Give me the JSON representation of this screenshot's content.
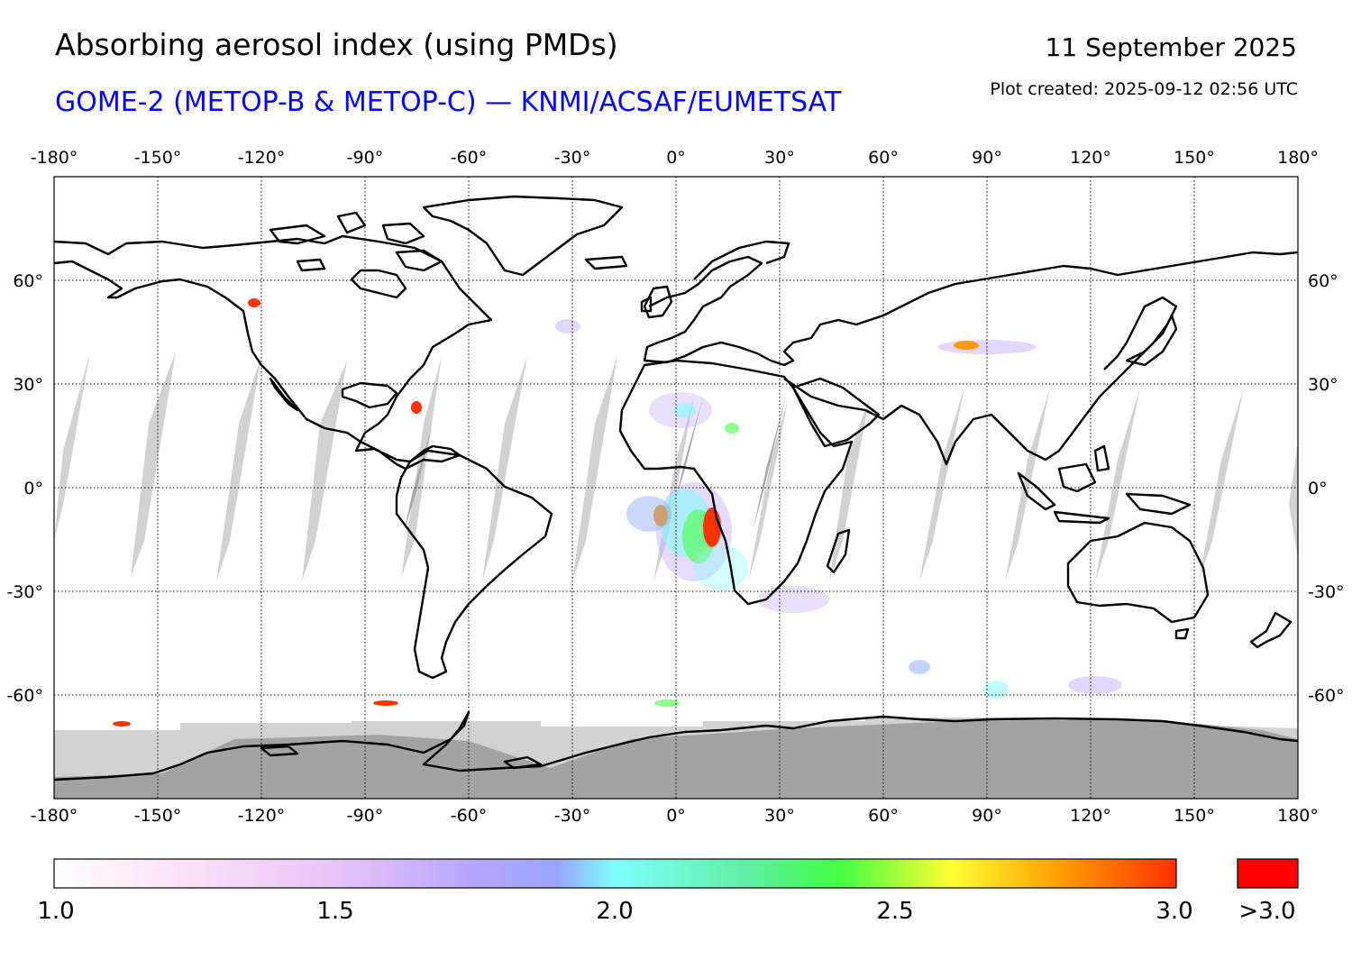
{
  "header": {
    "title": "Absorbing aerosol index (using PMDs)",
    "subtitle": "GOME-2 (METOP-B & METOP-C) — KNMI/ACSAF/EUMETSAT",
    "date": "11 September 2025",
    "created": "Plot created: 2025-09-12 02:56 UTC"
  },
  "colors": {
    "subtitle": "#0000ff",
    "coast": "#000000",
    "gap": "#d0d0d0",
    "night": "#a3a3a3",
    "high": "#ff0000"
  },
  "map": {
    "projection": "equirectangular",
    "lon_range": [
      -180,
      180
    ],
    "lat_range": [
      -90,
      90
    ],
    "grid": true,
    "lon_ticks": [
      "-180°",
      "-150°",
      "-120°",
      "-90°",
      "-60°",
      "-30°",
      "0°",
      "30°",
      "60°",
      "90°",
      "120°",
      "150°",
      "180°"
    ],
    "lat_ticks": [
      "60°",
      "30°",
      "0°",
      "-30°",
      "-60°"
    ]
  },
  "colorbar": {
    "min": 1.0,
    "max": 3.0,
    "tick_labels": [
      "1.0",
      "1.5",
      "2.0",
      "2.5",
      "3.0"
    ],
    "overflow_label": ">3.0",
    "stops": [
      "#ffffff",
      "#f8d8f8",
      "#c8b0ff",
      "#90a8ff",
      "#80ffff",
      "#50f080",
      "#44ff44",
      "#ffff33",
      "#ff9900",
      "#ff3300"
    ]
  }
}
